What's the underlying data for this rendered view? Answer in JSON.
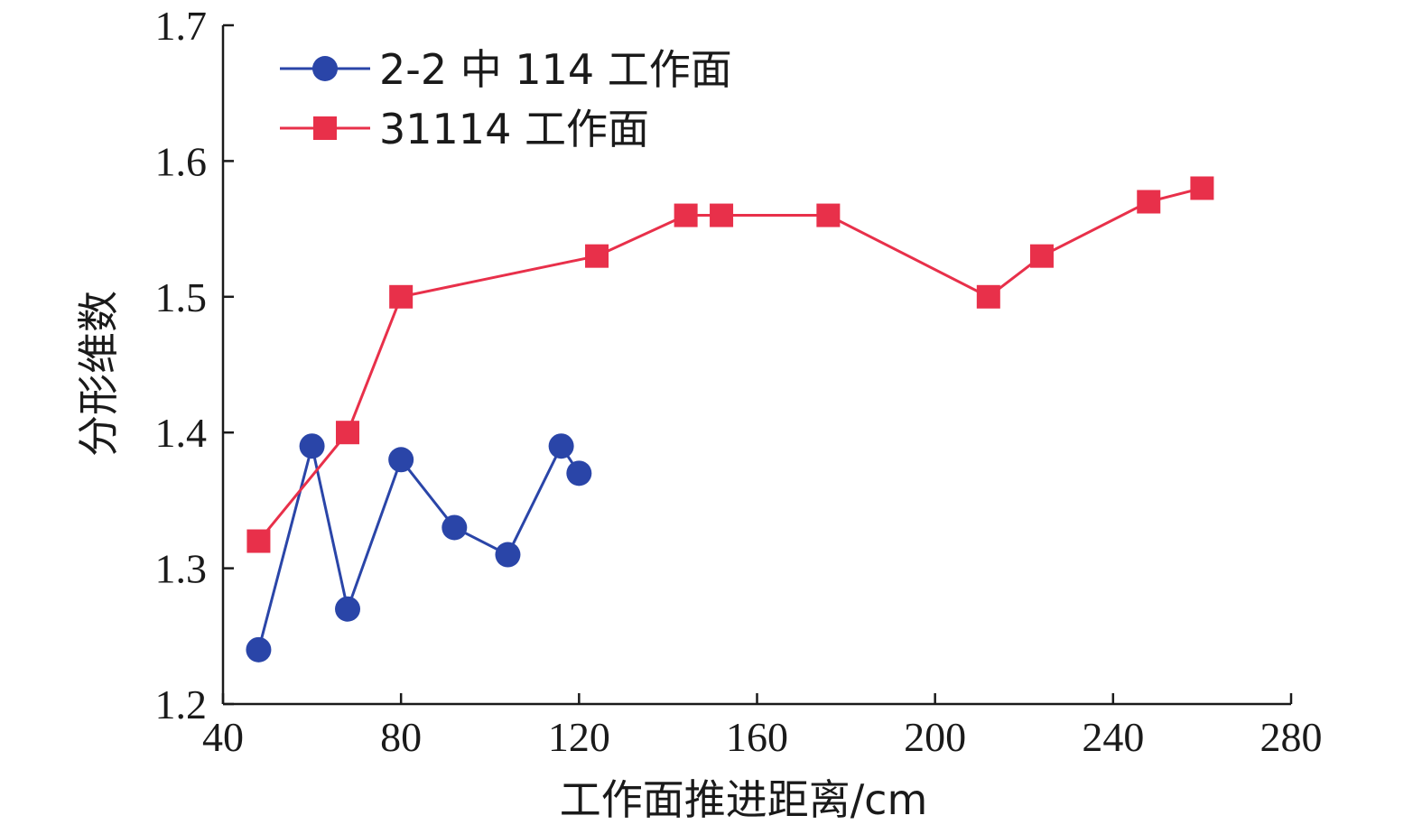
{
  "colors": {
    "series_blue": "#2a45a8",
    "series_red": "#e8304a",
    "axis": "#1a1a1a"
  },
  "chart_data": {
    "type": "line",
    "title": "",
    "xlabel": "工作面推进距离/cm",
    "ylabel": "分形维数",
    "xlim": [
      40,
      280
    ],
    "ylim": [
      1.2,
      1.7
    ],
    "xticks": [
      "40",
      "80",
      "120",
      "160",
      "200",
      "240",
      "280"
    ],
    "yticks": [
      "1.2",
      "1.3",
      "1.4",
      "1.5",
      "1.6",
      "1.7"
    ],
    "grid": false,
    "legend_position": "top-left",
    "series": [
      {
        "name": "2-2 中 114 工作面",
        "marker": "circle",
        "color": "#2a45a8",
        "x": [
          48,
          60,
          68,
          80,
          92,
          104,
          116,
          120
        ],
        "y": [
          1.24,
          1.39,
          1.27,
          1.38,
          1.33,
          1.31,
          1.39,
          1.37
        ]
      },
      {
        "name": "31114 工作面",
        "marker": "square",
        "color": "#e8304a",
        "x": [
          48,
          68,
          80,
          124,
          144,
          152,
          176,
          212,
          224,
          248,
          260
        ],
        "y": [
          1.32,
          1.4,
          1.5,
          1.53,
          1.56,
          1.56,
          1.56,
          1.5,
          1.53,
          1.57,
          1.58
        ]
      }
    ]
  }
}
